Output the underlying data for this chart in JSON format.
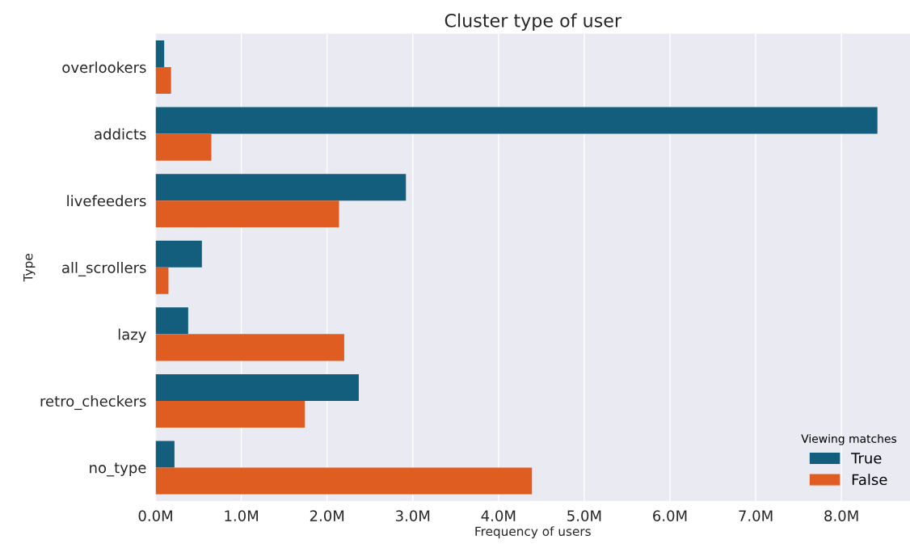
{
  "chart_data": {
    "type": "bar",
    "orientation": "horizontal",
    "title": "Cluster type of user",
    "xlabel": "Frequency of users",
    "ylabel": "Type",
    "legend_title": "Viewing matches",
    "legend": "bottom right",
    "grid": "x",
    "categories": [
      "overlookers",
      "addicts",
      "livefeeders",
      "all_scrollers",
      "lazy",
      "retro_checkers",
      "no_type"
    ],
    "series": [
      {
        "name": "True",
        "color": "#135e7c",
        "values": [
          0.1,
          8.42,
          2.92,
          0.54,
          0.38,
          2.37,
          0.22
        ]
      },
      {
        "name": "False",
        "color": "#e05d21",
        "values": [
          0.18,
          0.65,
          2.14,
          0.15,
          2.2,
          1.74,
          4.39
        ]
      }
    ],
    "xlim": [
      0,
      8.8
    ],
    "xticks": [
      {
        "value": 0,
        "label": "0.0M"
      },
      {
        "value": 1,
        "label": "1.0M"
      },
      {
        "value": 2,
        "label": "2.0M"
      },
      {
        "value": 3,
        "label": "3.0M"
      },
      {
        "value": 4,
        "label": "4.0M"
      },
      {
        "value": 5,
        "label": "5.0M"
      },
      {
        "value": 6,
        "label": "6.0M"
      },
      {
        "value": 7,
        "label": "7.0M"
      },
      {
        "value": 8,
        "label": "8.0M"
      }
    ]
  }
}
